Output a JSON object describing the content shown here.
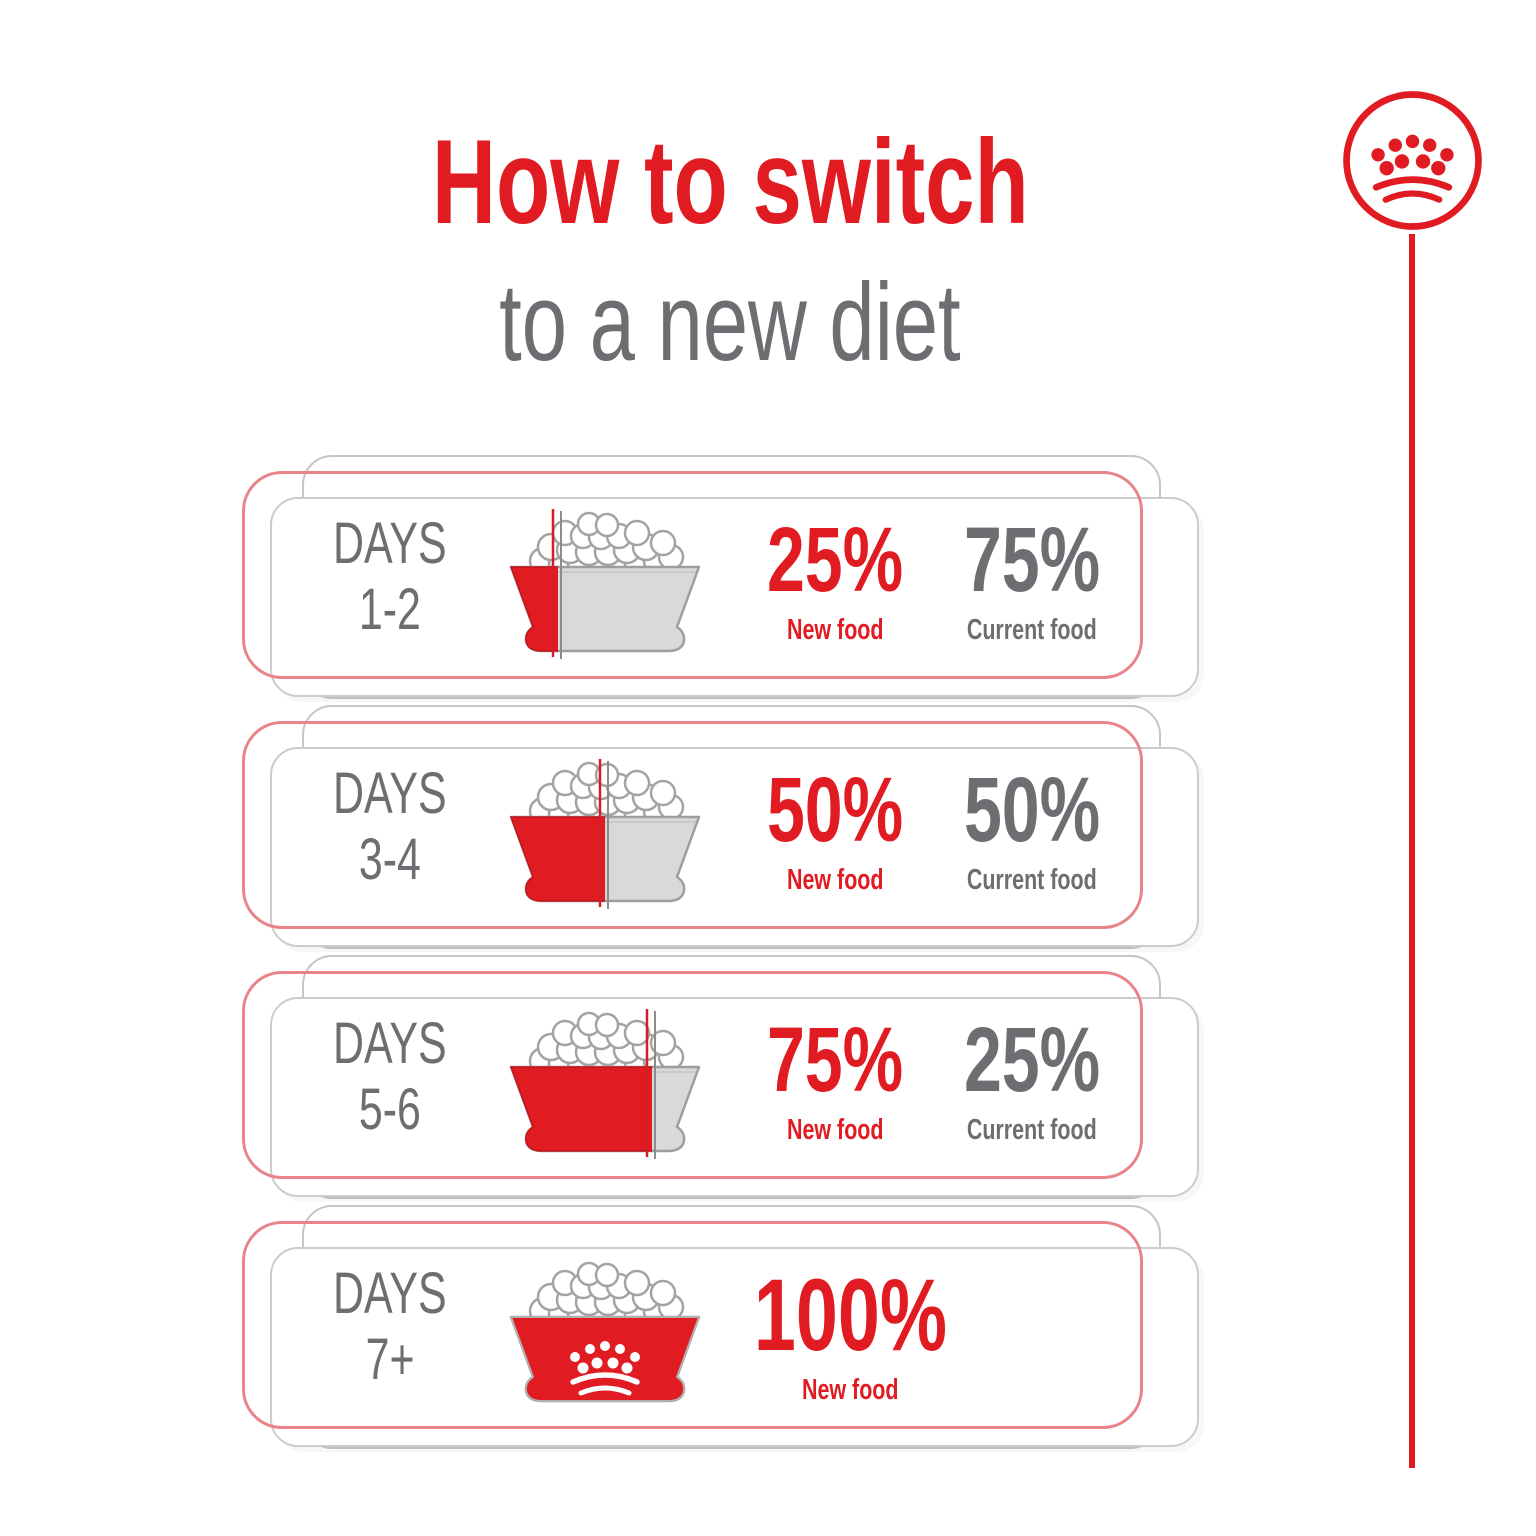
{
  "title": {
    "line1": "How to switch",
    "line2": "to a new diet"
  },
  "brand": {
    "logo_icon": "royal-canin-crown-icon"
  },
  "colors": {
    "red": "#e11b22",
    "soft_red_outline": "#e8838a",
    "gray_text": "#6d6e71",
    "card_outline": "#c6c6c6",
    "bowl_gray": "#d9d9d9",
    "bowl_outline": "#9e9e9e"
  },
  "rows": [
    {
      "days_word": "DAYS",
      "days_range": "1-2",
      "bowl_icon": "food-bowl-icon",
      "fill_percent": 25,
      "crown_on_bowl": false,
      "new_pct": "25%",
      "new_label": "New food",
      "current_pct": "75%",
      "current_label": "Current food"
    },
    {
      "days_word": "DAYS",
      "days_range": "3-4",
      "bowl_icon": "food-bowl-icon",
      "fill_percent": 50,
      "crown_on_bowl": false,
      "new_pct": "50%",
      "new_label": "New food",
      "current_pct": "50%",
      "current_label": "Current food"
    },
    {
      "days_word": "DAYS",
      "days_range": "5-6",
      "bowl_icon": "food-bowl-icon",
      "fill_percent": 75,
      "crown_on_bowl": false,
      "new_pct": "75%",
      "new_label": "New food",
      "current_pct": "25%",
      "current_label": "Current food"
    },
    {
      "days_word": "DAYS",
      "days_range": "7+",
      "bowl_icon": "food-bowl-icon",
      "fill_percent": 100,
      "crown_on_bowl": true,
      "new_pct": "100%",
      "new_label": "New food",
      "current_pct": null,
      "current_label": null
    }
  ]
}
